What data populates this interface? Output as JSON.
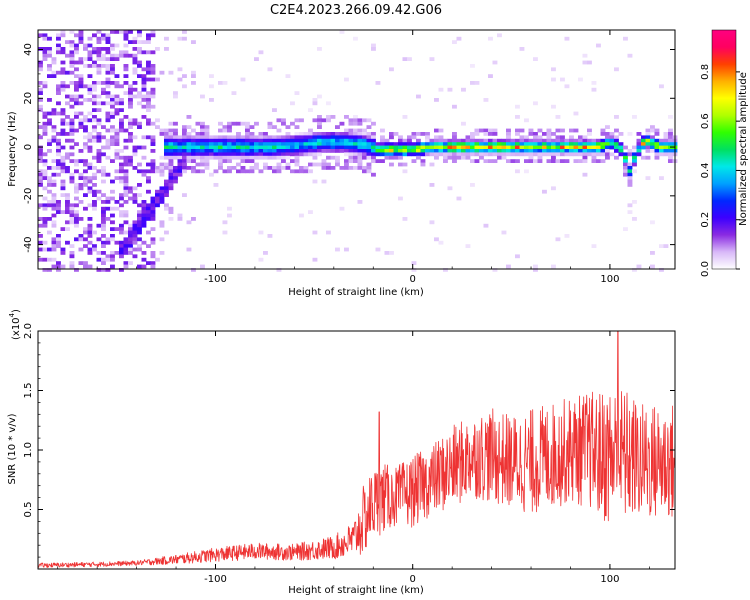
{
  "figure": {
    "title": "C2E4.2023.266.09.42.G06"
  },
  "chart_data": [
    {
      "type": "heatmap",
      "title": "C2E4.2023.266.09.42.G06",
      "xlabel": "Height of straight line (km)",
      "ylabel": "Frequency (Hz)",
      "xlim": [
        -190,
        133
      ],
      "ylim": [
        -50,
        48
      ],
      "xticks": [
        -100,
        0,
        100
      ],
      "yticks": [
        -40,
        -20,
        0,
        20,
        40
      ],
      "colorbar": {
        "label": "Normalized spectral amplitude",
        "range": [
          0.0,
          0.97
        ],
        "ticks": [
          "0.0",
          "0.2",
          "0.4",
          "0.6",
          "0.8"
        ],
        "colormap": [
          "#ffffff",
          "#d8b8f8",
          "#8a2be2",
          "#3c00ff",
          "#0028ff",
          "#00a0ff",
          "#00e8e8",
          "#00e060",
          "#30ff00",
          "#b0ff00",
          "#ffff00",
          "#ffb000",
          "#ff4000",
          "#ff0060",
          "#ff0080"
        ]
      },
      "ridge": {
        "description_points_x": [
          -128,
          -110,
          -90,
          -70,
          -55,
          -45,
          -35,
          -25,
          -18,
          -10,
          0,
          10,
          20,
          40,
          60,
          80,
          95,
          100,
          105,
          108,
          110,
          113,
          118,
          125,
          133
        ],
        "description_points_y": [
          0,
          0,
          0,
          0,
          1,
          2,
          2,
          1,
          -1,
          -1,
          -1,
          0,
          0,
          0,
          0,
          0,
          0,
          2,
          0,
          -5,
          -10,
          -3,
          3,
          0,
          0
        ]
      }
    },
    {
      "type": "line",
      "xlabel": "Height of straight line (km)",
      "ylabel": "SNR (10 * v/v)",
      "y_scale_label": "(x10",
      "y_scale_exp": "4",
      "xlim": [
        -190,
        133
      ],
      "ylim": [
        0,
        2.0
      ],
      "xticks": [
        -100,
        0,
        100
      ],
      "yticks": [
        "0.5",
        "1.0",
        "1.5",
        "2.0"
      ],
      "color": "#ee3333",
      "envelope_x": [
        -190,
        -160,
        -140,
        -120,
        -100,
        -80,
        -60,
        -40,
        -30,
        -25,
        -20,
        -15,
        -10,
        0,
        10,
        20,
        30,
        40,
        50,
        60,
        70,
        80,
        90,
        95,
        100,
        105,
        110,
        115,
        120,
        125,
        133
      ],
      "envelope_mean": [
        0.03,
        0.04,
        0.05,
        0.08,
        0.12,
        0.15,
        0.14,
        0.18,
        0.25,
        0.4,
        0.55,
        0.6,
        0.6,
        0.65,
        0.75,
        0.85,
        0.95,
        0.95,
        0.9,
        0.9,
        0.95,
        1.0,
        1.0,
        0.95,
        0.95,
        0.95,
        0.95,
        0.9,
        0.9,
        0.9,
        0.9
      ],
      "envelope_amp": [
        0.02,
        0.02,
        0.02,
        0.04,
        0.06,
        0.07,
        0.07,
        0.1,
        0.15,
        0.3,
        0.3,
        0.3,
        0.25,
        0.3,
        0.3,
        0.35,
        0.35,
        0.4,
        0.4,
        0.45,
        0.45,
        0.45,
        0.5,
        0.55,
        0.6,
        0.6,
        0.55,
        0.5,
        0.5,
        0.5,
        0.5
      ],
      "peaks": [
        {
          "x": -17,
          "y": 1.32
        },
        {
          "x": 104,
          "y": 2.0
        }
      ]
    }
  ]
}
